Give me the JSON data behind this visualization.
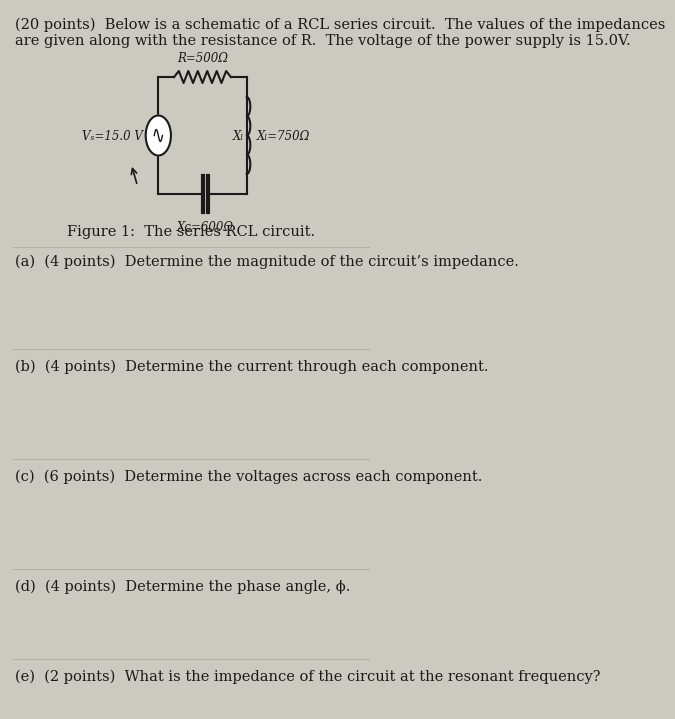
{
  "background_color": "#cccac0",
  "text_color": "#1a1a1a",
  "title_line1": "(20 points)  Below is a schematic of a RCL series circuit.  The values of the impedances",
  "title_line2": "are given along with the resistance of R.  The voltage of the power supply is 15.0V.",
  "figure_caption": "Figure 1:  The series RCL circuit.",
  "question_a": "(a)  (4 points)  Determine the magnitude of the circuit’s impedance.",
  "question_b": "(b)  (4 points)  Determine the current through each component.",
  "question_c": "(c)  (6 points)  Determine the voltages across each component.",
  "question_d": "(d)  (4 points)  Determine the phase angle, ϕ.",
  "question_e": "(e)  (2 points)  What is the impedance of the circuit at the resonant frequency?",
  "R_label": "R=500Ω",
  "XL_label": "Xₗ=750Ω",
  "XC_label": "Xᴄ=600Ω",
  "VS_label": "Vₛ=15.0 V",
  "XL_symbol": "Xₗ",
  "font_size_header": 10.5,
  "font_size_questions": 10.5,
  "font_size_circuit": 8.5,
  "font_size_caption": 10.5
}
